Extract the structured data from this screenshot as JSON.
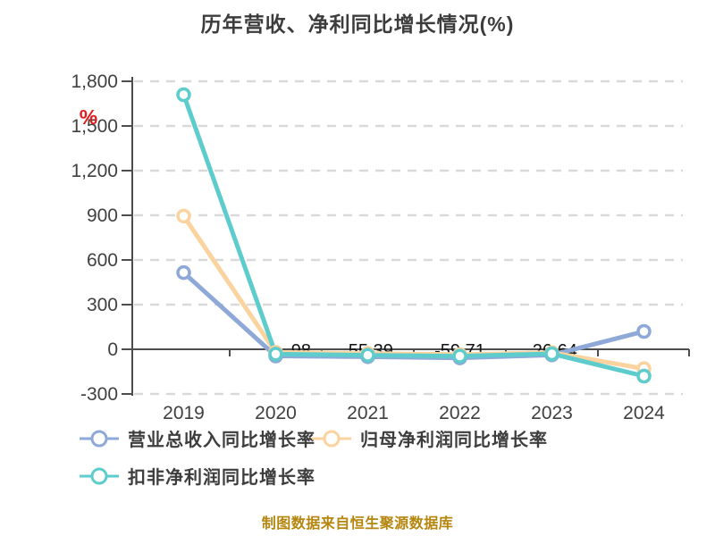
{
  "title": "历年营收、净利同比增长情况(%)",
  "y_axis_unit": "%",
  "source_caption": "制图数据来自恒生聚源数据库",
  "colors": {
    "title_text": "#3c3c3c",
    "axis_line": "#4d4d4d",
    "grid_line": "#d9d9d9",
    "tick_label": "#404040",
    "unit_label": "#e01d1d",
    "point_label": "#111111",
    "caption_text": "#b5860e",
    "background": "#ffffff"
  },
  "chart_data": {
    "type": "line",
    "title": "历年营收、净利同比增长情况(%)",
    "categories": [
      "2019",
      "2020",
      "2021",
      "2022",
      "2023",
      "2024"
    ],
    "series": [
      {
        "name": "营业总收入同比增长率",
        "color": "#8ea9d8",
        "values": [
          515,
          -45,
          -50,
          -58,
          -38,
          120
        ]
      },
      {
        "name": "归母净利润同比增长率",
        "color": "#fbd39e",
        "values": [
          895,
          -20,
          -28,
          -35,
          -22,
          -130
        ]
      },
      {
        "name": "扣非净利润同比增长率",
        "color": "#5ecccc",
        "values": [
          1710,
          -32,
          -40,
          -46,
          -30,
          -180
        ]
      }
    ],
    "point_labels": [
      {
        "year": "2020",
        "text": "-98",
        "offset_x": 25
      },
      {
        "year": "2021",
        "text": "-55.39",
        "offset_x": 0
      },
      {
        "year": "2022",
        "text": "-59.71",
        "offset_x": 0
      },
      {
        "year": "2023",
        "text": "-26.64",
        "offset_x": 0
      }
    ],
    "ylim": [
      -300,
      1800
    ],
    "y_tick_step": 300,
    "y_ticks": [
      {
        "label": "1,800",
        "value": 1800
      },
      {
        "label": "1,500",
        "value": 1500
      },
      {
        "label": "1,200",
        "value": 1200
      },
      {
        "label": "900",
        "value": 900
      },
      {
        "label": "600",
        "value": 600
      },
      {
        "label": "300",
        "value": 300
      },
      {
        "label": "0",
        "value": 0
      },
      {
        "label": "-300",
        "value": -300
      }
    ],
    "grid": "dashed-horizontal",
    "legend_position": "bottom-left"
  }
}
